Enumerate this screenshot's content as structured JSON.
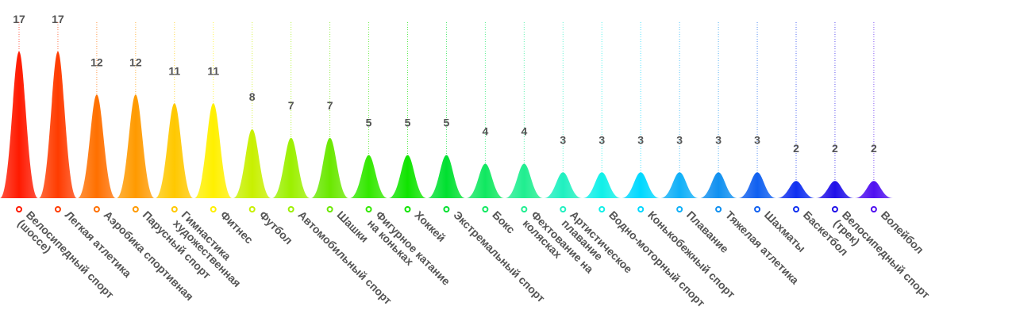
{
  "chart_data": {
    "type": "bar",
    "title": "",
    "xlabel": "",
    "ylabel": "",
    "ylim": [
      0,
      17
    ],
    "grid": false,
    "legend": "none",
    "categories": [
      [
        "Велосипедный спорт",
        "(шоссе)"
      ],
      [
        "Легкая атлетика"
      ],
      [
        "Аэробика спортивная"
      ],
      [
        "Парусный спорт"
      ],
      [
        "Гимнастика",
        "художественная"
      ],
      [
        "Фитнес"
      ],
      [
        "Футбол"
      ],
      [
        "Автомобильный спорт"
      ],
      [
        "Шашки"
      ],
      [
        "Фигурное катание",
        "на коньках"
      ],
      [
        "Хоккей"
      ],
      [
        "Экстремальный спорт"
      ],
      [
        "Бокс"
      ],
      [
        "Фехтование на",
        "колясках"
      ],
      [
        "Артистическое",
        "плавание"
      ],
      [
        "Водно-моторный спорт"
      ],
      [
        "Конькобежный спорт"
      ],
      [
        "Плавание"
      ],
      [
        "Тяжелая атлетика"
      ],
      [
        "Шахматы"
      ],
      [
        "Баскетбол"
      ],
      [
        "Велосипедный спорт",
        "(трек)"
      ],
      [
        "Волейбол"
      ]
    ],
    "values": [
      17,
      17,
      12,
      12,
      11,
      11,
      8,
      7,
      7,
      5,
      5,
      5,
      4,
      4,
      3,
      3,
      3,
      3,
      3,
      3,
      2,
      2,
      2
    ],
    "colors": [
      "#ff1a00",
      "#ff3c00",
      "#ff7000",
      "#ff9a00",
      "#ffc800",
      "#fff000",
      "#c8f000",
      "#9cf000",
      "#6ae800",
      "#33e800",
      "#10e400",
      "#00e030",
      "#10e860",
      "#20ee90",
      "#20f0c0",
      "#10f0e8",
      "#00d8ff",
      "#10b0f8",
      "#1090f0",
      "#1060f0",
      "#1030f0",
      "#2010e8",
      "#5010f0"
    ]
  }
}
